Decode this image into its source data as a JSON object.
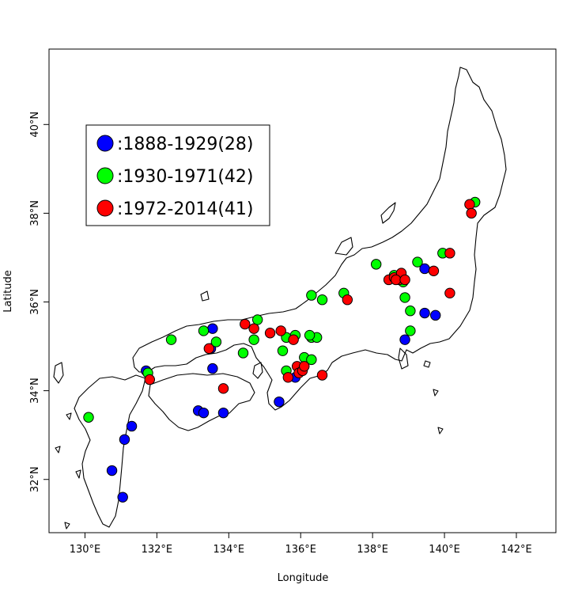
{
  "axes": {
    "xlabel": "Longitude",
    "ylabel": "Latitude",
    "xticks": [
      {
        "value": 130,
        "label": "130°E"
      },
      {
        "value": 132,
        "label": "132°E"
      },
      {
        "value": 134,
        "label": "134°E"
      },
      {
        "value": 136,
        "label": "136°E"
      },
      {
        "value": 138,
        "label": "138°E"
      },
      {
        "value": 140,
        "label": "140°E"
      },
      {
        "value": 142,
        "label": "142°E"
      }
    ],
    "yticks": [
      {
        "value": 32,
        "label": "32°N"
      },
      {
        "value": 34,
        "label": "34°N"
      },
      {
        "value": 36,
        "label": "36°N"
      },
      {
        "value": 38,
        "label": "38°N"
      },
      {
        "value": 40,
        "label": "40°N"
      }
    ],
    "xlim": [
      129.0,
      143.1
    ],
    "ylim": [
      30.8,
      41.7
    ]
  },
  "legend": {
    "items": [
      {
        "label": ":1888-1929(28)",
        "color": "#0000ff"
      },
      {
        "label": ":1930-1971(42)",
        "color": "#00ff00"
      },
      {
        "label": ":1972-2014(41)",
        "color": "#ff0000"
      }
    ]
  },
  "chart_data": {
    "type": "scatter",
    "series": [
      {
        "name": ":1888-1929(28)",
        "color": "#0000ff",
        "points": [
          [
            131.05,
            31.6
          ],
          [
            130.75,
            32.2
          ],
          [
            131.1,
            32.9
          ],
          [
            131.3,
            33.2
          ],
          [
            131.7,
            34.45
          ],
          [
            133.15,
            33.55
          ],
          [
            133.3,
            33.5
          ],
          [
            133.85,
            33.5
          ],
          [
            133.55,
            34.5
          ],
          [
            133.5,
            34.95
          ],
          [
            133.55,
            35.4
          ],
          [
            135.4,
            33.75
          ],
          [
            135.85,
            34.3
          ],
          [
            139.45,
            36.75
          ],
          [
            139.45,
            35.75
          ],
          [
            139.75,
            35.7
          ],
          [
            138.9,
            35.15
          ]
        ]
      },
      {
        "name": ":1930-1971(42)",
        "color": "#00ff00",
        "points": [
          [
            130.1,
            33.4
          ],
          [
            131.75,
            34.4
          ],
          [
            132.4,
            35.15
          ],
          [
            133.3,
            35.35
          ],
          [
            133.65,
            35.1
          ],
          [
            134.4,
            34.85
          ],
          [
            134.7,
            35.15
          ],
          [
            134.8,
            35.6
          ],
          [
            135.5,
            34.9
          ],
          [
            135.6,
            35.2
          ],
          [
            135.6,
            34.45
          ],
          [
            135.85,
            35.25
          ],
          [
            136.1,
            34.75
          ],
          [
            136.3,
            35.2
          ],
          [
            136.3,
            34.7
          ],
          [
            136.45,
            35.2
          ],
          [
            136.3,
            36.15
          ],
          [
            136.6,
            36.05
          ],
          [
            137.2,
            36.2
          ],
          [
            138.1,
            36.85
          ],
          [
            138.6,
            36.6
          ],
          [
            138.85,
            36.45
          ],
          [
            138.9,
            36.1
          ],
          [
            139.05,
            35.8
          ],
          [
            139.05,
            35.35
          ],
          [
            139.25,
            36.9
          ],
          [
            139.95,
            37.1
          ],
          [
            140.85,
            38.25
          ],
          [
            136.25,
            35.25
          ],
          [
            135.95,
            34.5
          ]
        ]
      },
      {
        "name": ":1972-2014(41)",
        "color": "#ff0000",
        "points": [
          [
            131.8,
            34.25
          ],
          [
            133.85,
            34.05
          ],
          [
            133.45,
            34.95
          ],
          [
            134.45,
            35.5
          ],
          [
            134.7,
            35.4
          ],
          [
            135.15,
            35.3
          ],
          [
            135.45,
            35.35
          ],
          [
            135.8,
            35.15
          ],
          [
            135.65,
            34.3
          ],
          [
            135.9,
            34.55
          ],
          [
            135.95,
            34.4
          ],
          [
            136.05,
            34.45
          ],
          [
            136.1,
            34.55
          ],
          [
            136.6,
            34.35
          ],
          [
            137.3,
            36.05
          ],
          [
            138.45,
            36.5
          ],
          [
            138.6,
            36.55
          ],
          [
            138.75,
            36.5
          ],
          [
            138.8,
            36.65
          ],
          [
            139.7,
            36.7
          ],
          [
            140.15,
            37.1
          ],
          [
            140.15,
            36.2
          ],
          [
            140.7,
            38.2
          ],
          [
            140.75,
            38.0
          ],
          [
            138.65,
            36.5
          ],
          [
            138.9,
            36.5
          ]
        ]
      }
    ]
  }
}
